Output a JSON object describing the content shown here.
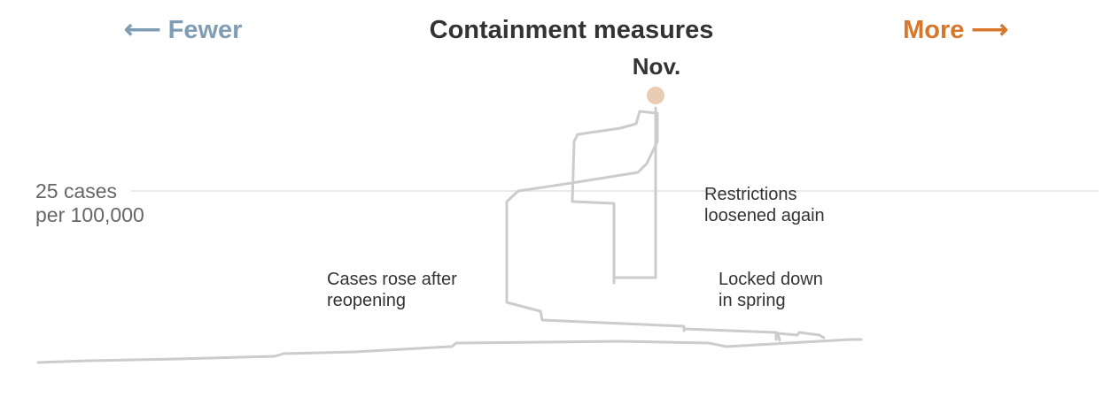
{
  "header": {
    "fewer_label": "⟵ Fewer",
    "title": "Containment measures",
    "more_label": "More ⟶"
  },
  "colors": {
    "fewer": "#7f9db4",
    "more": "#d6772c",
    "path": "#cccccc",
    "end_marker": "#e8cdb4",
    "reference_line": "#e4e4e4",
    "text": "#333333",
    "axis_label": "#666666"
  },
  "chart_data": {
    "type": "line",
    "title": "Containment measures",
    "x_axis": {
      "left_label": "⟵ Fewer",
      "right_label": "More ⟶"
    },
    "reference_line": {
      "label_line1": "25 cases",
      "label_line2": "per 100,000",
      "value": 25
    },
    "end_point": {
      "label": "Nov."
    },
    "annotations": [
      {
        "line1": "Restrictions",
        "line2": "loosened again"
      },
      {
        "line1": "Cases rose after",
        "line2": "reopening"
      },
      {
        "line1": "Locked down",
        "line2": "in spring"
      }
    ]
  }
}
